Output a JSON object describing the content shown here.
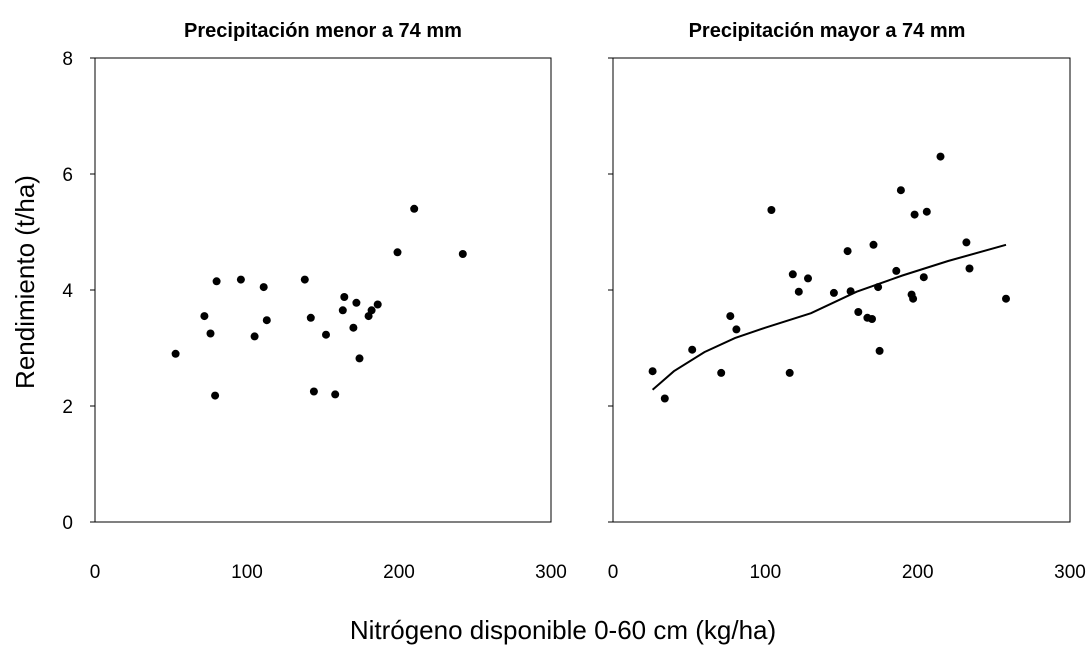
{
  "chart_data": {
    "panels": [
      {
        "type": "scatter",
        "title": "Precipitación  menor a 74 mm",
        "xlim": [
          0,
          300
        ],
        "ylim": [
          0,
          8
        ],
        "xticks": [
          "0",
          "100",
          "200",
          "300"
        ],
        "yticks": [
          "0",
          "2",
          "4",
          "6",
          "8"
        ],
        "points": [
          [
            53,
            2.9
          ],
          [
            72,
            3.55
          ],
          [
            76,
            3.25
          ],
          [
            80,
            4.15
          ],
          [
            79,
            2.18
          ],
          [
            96,
            4.18
          ],
          [
            105,
            3.2
          ],
          [
            111,
            4.05
          ],
          [
            113,
            3.48
          ],
          [
            138,
            4.18
          ],
          [
            142,
            3.52
          ],
          [
            144,
            2.25
          ],
          [
            152,
            3.23
          ],
          [
            158,
            2.2
          ],
          [
            163,
            3.65
          ],
          [
            164,
            3.88
          ],
          [
            170,
            3.35
          ],
          [
            172,
            3.78
          ],
          [
            174,
            2.82
          ],
          [
            180,
            3.55
          ],
          [
            182,
            3.65
          ],
          [
            186,
            3.75
          ],
          [
            199,
            4.65
          ],
          [
            210,
            5.4
          ],
          [
            242,
            4.62
          ]
        ]
      },
      {
        "type": "scatter",
        "title": "Precipitación mayor a 74 mm",
        "xlim": [
          0,
          300
        ],
        "ylim": [
          0,
          8
        ],
        "xticks": [
          "0",
          "100",
          "200",
          "300"
        ],
        "points": [
          [
            26,
            2.6
          ],
          [
            34,
            2.13
          ],
          [
            52,
            2.97
          ],
          [
            71,
            2.57
          ],
          [
            77,
            3.55
          ],
          [
            81,
            3.32
          ],
          [
            104,
            5.38
          ],
          [
            116,
            2.57
          ],
          [
            118,
            4.27
          ],
          [
            122,
            3.97
          ],
          [
            128,
            4.2
          ],
          [
            145,
            3.95
          ],
          [
            154,
            4.67
          ],
          [
            156,
            3.98
          ],
          [
            161,
            3.62
          ],
          [
            167,
            3.52
          ],
          [
            170,
            3.5
          ],
          [
            171,
            4.78
          ],
          [
            174,
            4.05
          ],
          [
            175,
            2.95
          ],
          [
            186,
            4.33
          ],
          [
            189,
            5.72
          ],
          [
            196,
            3.92
          ],
          [
            197,
            3.85
          ],
          [
            198,
            5.3
          ],
          [
            204,
            4.22
          ],
          [
            206,
            5.35
          ],
          [
            215,
            6.3
          ],
          [
            232,
            4.82
          ],
          [
            234,
            4.37
          ],
          [
            258,
            3.85
          ]
        ],
        "trend": {
          "type": "logarithmic",
          "x": [
            26,
            40,
            60,
            80,
            100,
            130,
            160,
            190,
            220,
            258
          ],
          "y": [
            2.28,
            2.6,
            2.93,
            3.17,
            3.35,
            3.6,
            3.97,
            4.25,
            4.5,
            4.78
          ]
        }
      }
    ],
    "ylabel": "Rendimiento (t/ha)",
    "xlabel": "Nitrógeno disponible 0-60 cm (kg/ha)"
  }
}
